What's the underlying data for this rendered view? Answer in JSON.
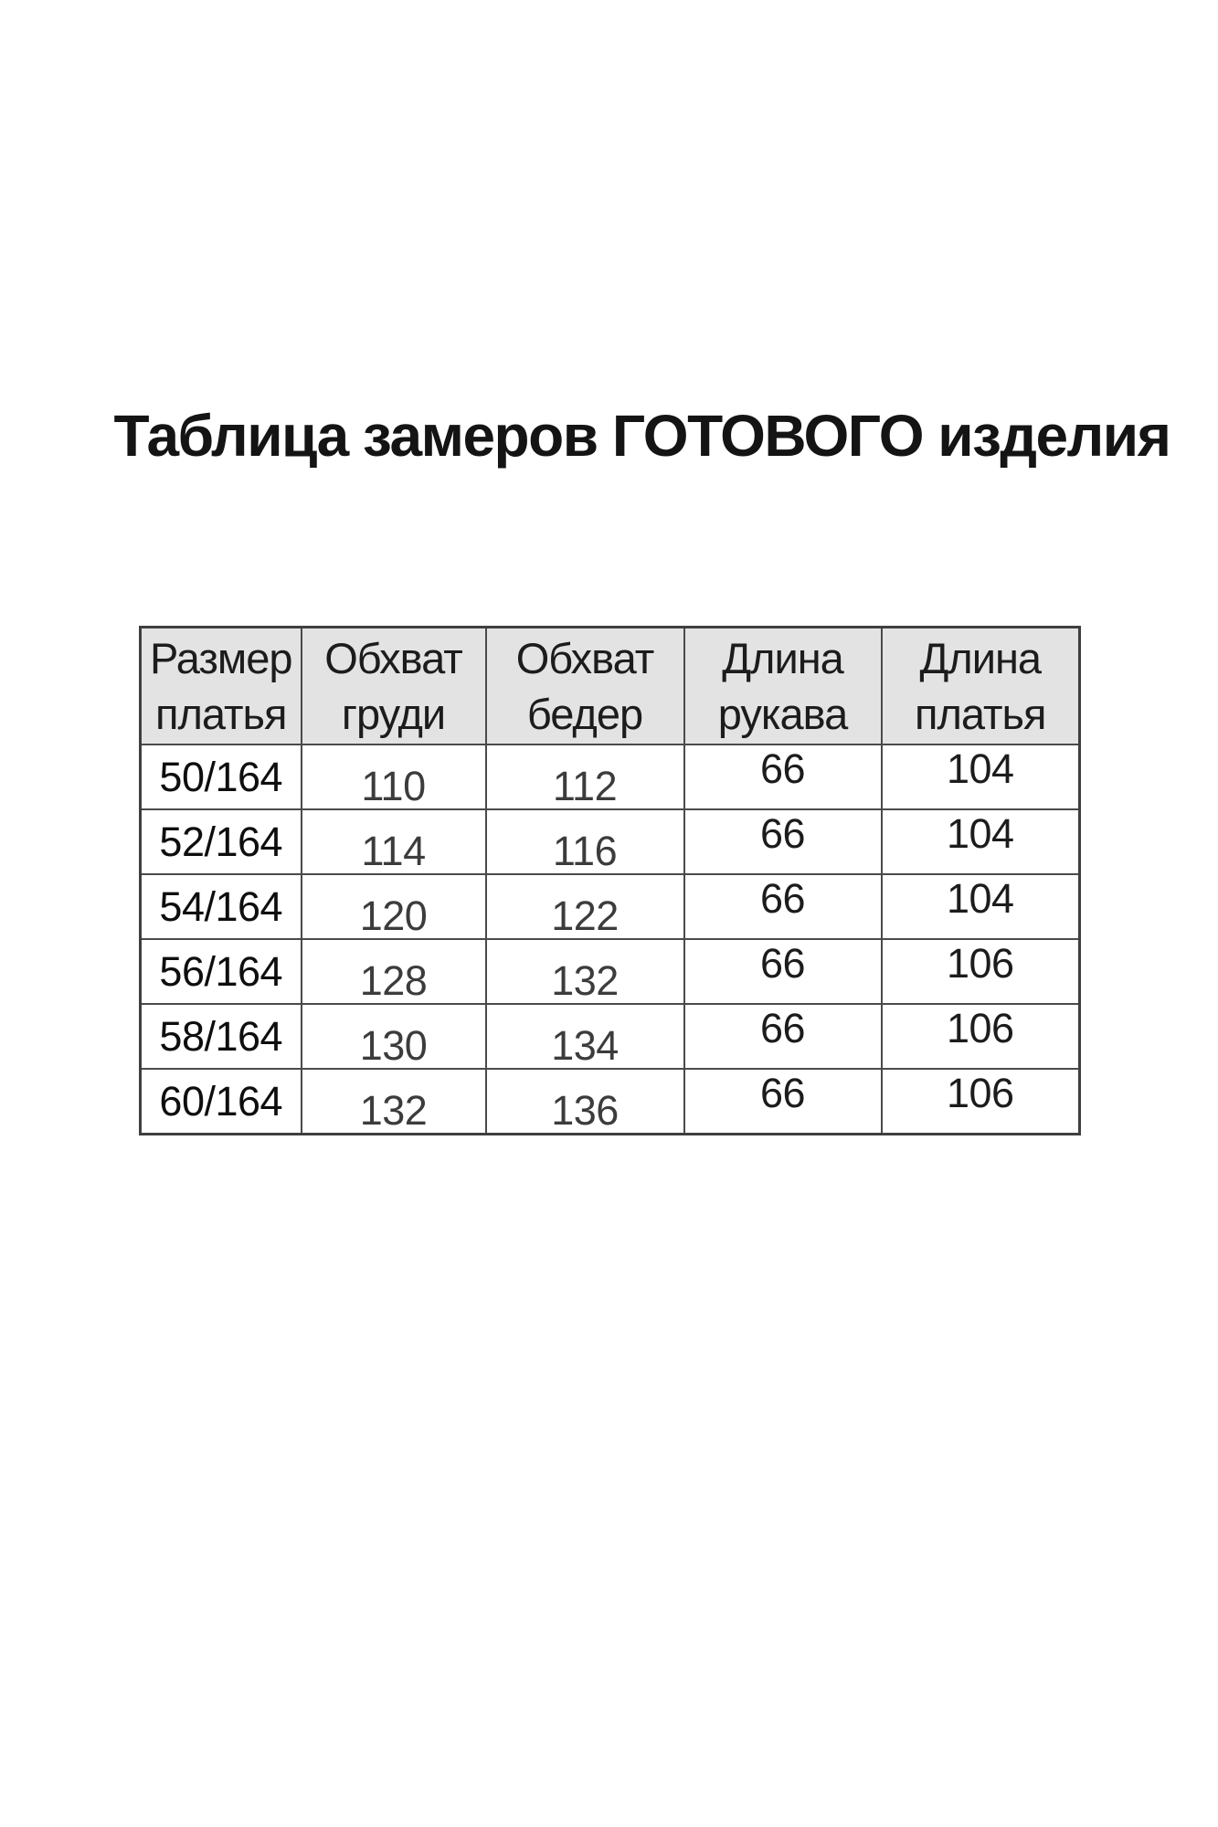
{
  "title": "Таблица замеров ГОТОВОГО изделия",
  "colors": {
    "page_bg": "#ffffff",
    "header_bg": "#e3e3e3",
    "border": "#4a4a4a",
    "title_text": "#141414",
    "cell_text": "#1c1c1c"
  },
  "table": {
    "headers": [
      {
        "line1": "Размер",
        "line2": "платья"
      },
      {
        "line1": "Обхват",
        "line2": "груди"
      },
      {
        "line1": "Обхват",
        "line2": "бедер"
      },
      {
        "line1": "Длина",
        "line2": "рукава"
      },
      {
        "line1": "Длина",
        "line2": "платья"
      }
    ],
    "rows": [
      {
        "size": "50/164",
        "chest": "110",
        "hips": "112",
        "sleeve": "66",
        "length": "104"
      },
      {
        "size": "52/164",
        "chest": "114",
        "hips": "116",
        "sleeve": "66",
        "length": "104"
      },
      {
        "size": "54/164",
        "chest": "120",
        "hips": "122",
        "sleeve": "66",
        "length": "104"
      },
      {
        "size": "56/164",
        "chest": "128",
        "hips": "132",
        "sleeve": "66",
        "length": "106"
      },
      {
        "size": "58/164",
        "chest": "130",
        "hips": "134",
        "sleeve": "66",
        "length": "106"
      },
      {
        "size": "60/164",
        "chest": "132",
        "hips": "136",
        "sleeve": "66",
        "length": "106"
      }
    ]
  }
}
